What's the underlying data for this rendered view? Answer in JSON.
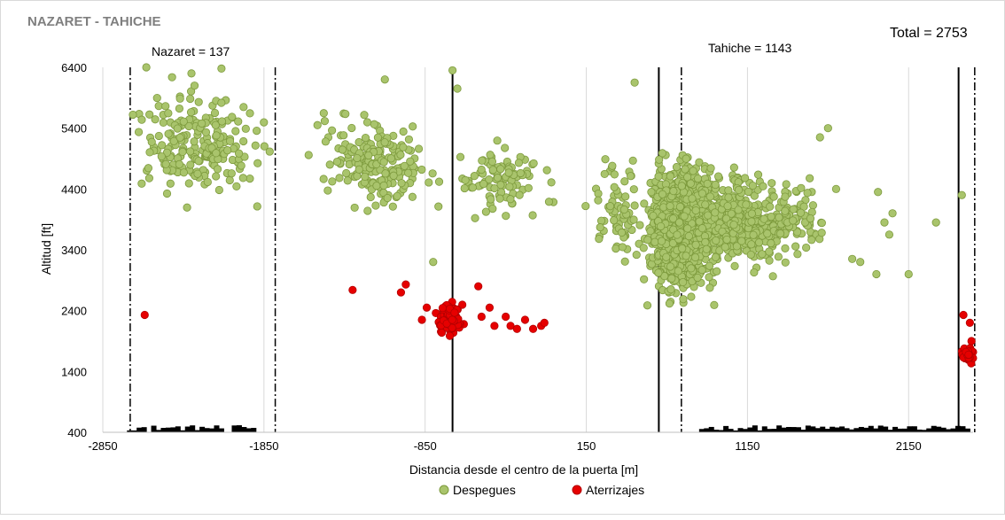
{
  "chart_data": {
    "type": "scatter",
    "title": "NAZARET - TAHICHE",
    "total_label": "Total = 2753",
    "zone_labels": [
      "Nazaret = 137",
      "Tahiche = 1143"
    ],
    "xlabel": "Distancia desde el centro de la puerta [m]",
    "ylabel": "Altitud [ft]",
    "xlim": [
      -2850,
      2550
    ],
    "ylim": [
      400,
      6400
    ],
    "x_ticks": [
      -2850,
      -1850,
      -850,
      150,
      1150,
      2150
    ],
    "y_ticks": [
      400,
      1400,
      2400,
      3400,
      4400,
      5400,
      6400
    ],
    "grid": "vertical",
    "legend_position": "bottom",
    "colors": {
      "despegues_fill": "#a9c46c",
      "despegues_edge": "#7d9a3d",
      "aterrizajes_fill": "#e60000",
      "aterrizajes_edge": "#b30000",
      "terrain": "#000000",
      "gridline": "#d9d9d9"
    },
    "reference_lines": [
      {
        "x": -2680,
        "style": "dash-dot"
      },
      {
        "x": -1780,
        "style": "dash-dot"
      },
      {
        "x": -680,
        "style": "solid"
      },
      {
        "x": 600,
        "style": "solid"
      },
      {
        "x": 740,
        "style": "dash-dot"
      },
      {
        "x": 2460,
        "style": "solid"
      },
      {
        "x": 2560,
        "style": "dash-dot"
      }
    ],
    "series": [
      {
        "name": "Despegues",
        "clusters": [
          {
            "x": [
              -2850,
              -1650
            ],
            "y": [
              3900,
              6400
            ],
            "n": 220
          },
          {
            "x": [
              -1650,
              -700
            ],
            "y": [
              3800,
              6000
            ],
            "n": 190
          },
          {
            "x": [
              -850,
              100
            ],
            "y": [
              3700,
              5300
            ],
            "n": 90
          },
          {
            "x": [
              100,
              600
            ],
            "y": [
              2900,
              5100
            ],
            "n": 70
          },
          {
            "x": [
              460,
              1050
            ],
            "y": [
              2400,
              5100
            ],
            "n": 1250
          },
          {
            "x": [
              800,
              1500
            ],
            "y": [
              2800,
              5000
            ],
            "n": 300
          },
          {
            "x": [
              1200,
              1700
            ],
            "y": [
              3000,
              4800
            ],
            "n": 70
          }
        ],
        "points": [
          {
            "x": -2580,
            "y": 6400
          },
          {
            "x": -2300,
            "y": 6300
          },
          {
            "x": -1100,
            "y": 6200
          },
          {
            "x": -680,
            "y": 6350
          },
          {
            "x": -650,
            "y": 6050
          },
          {
            "x": 450,
            "y": 6150
          },
          {
            "x": 1650,
            "y": 5400
          },
          {
            "x": 1600,
            "y": 5250
          },
          {
            "x": 1700,
            "y": 4400
          },
          {
            "x": 1800,
            "y": 3250
          },
          {
            "x": 1850,
            "y": 3200
          },
          {
            "x": 1950,
            "y": 3000
          },
          {
            "x": 2000,
            "y": 3850
          },
          {
            "x": 2050,
            "y": 4000
          },
          {
            "x": 2030,
            "y": 3650
          },
          {
            "x": 1960,
            "y": 4350
          },
          {
            "x": 2150,
            "y": 3000
          },
          {
            "x": 2320,
            "y": 3850
          },
          {
            "x": 2480,
            "y": 4300
          },
          {
            "x": -800,
            "y": 3200
          }
        ]
      },
      {
        "name": "Aterrizajes",
        "clusters": [
          {
            "x": [
              -800,
              -580
            ],
            "y": [
              1950,
              2600
            ],
            "n": 110
          },
          {
            "x": [
              2460,
              2570
            ],
            "y": [
              1500,
              1900
            ],
            "n": 40
          }
        ],
        "points": [
          {
            "x": -2590,
            "y": 2330
          },
          {
            "x": -1300,
            "y": 2740
          },
          {
            "x": -1000,
            "y": 2700
          },
          {
            "x": -970,
            "y": 2830
          },
          {
            "x": -870,
            "y": 2250
          },
          {
            "x": -840,
            "y": 2450
          },
          {
            "x": -520,
            "y": 2800
          },
          {
            "x": -500,
            "y": 2300
          },
          {
            "x": -450,
            "y": 2450
          },
          {
            "x": -420,
            "y": 2150
          },
          {
            "x": -350,
            "y": 2300
          },
          {
            "x": -320,
            "y": 2150
          },
          {
            "x": -280,
            "y": 2100
          },
          {
            "x": -230,
            "y": 2250
          },
          {
            "x": -180,
            "y": 2100
          },
          {
            "x": -130,
            "y": 2150
          },
          {
            "x": -110,
            "y": 2200
          },
          {
            "x": 2490,
            "y": 2330
          },
          {
            "x": 2530,
            "y": 2200
          },
          {
            "x": 2540,
            "y": 1900
          }
        ]
      }
    ],
    "legend": [
      "Despegues",
      "Aterrizajes"
    ]
  }
}
